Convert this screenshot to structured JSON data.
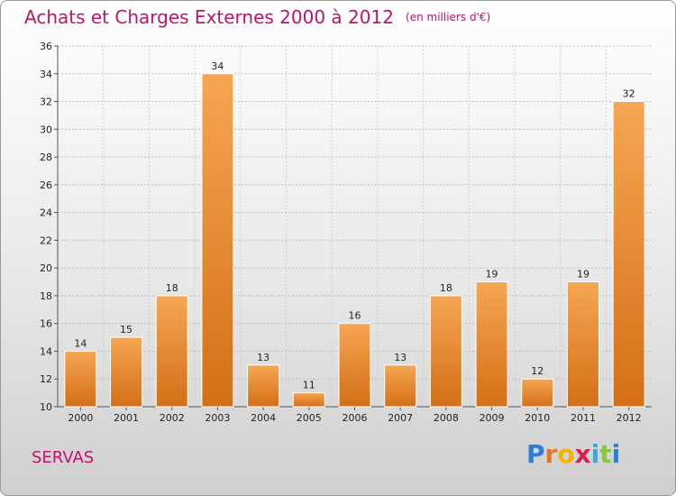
{
  "title": "Achats et Charges Externes 2000 à 2012",
  "unit": "(en milliers d'€)",
  "commune": "SERVAS",
  "logo": {
    "letters": [
      "P",
      "r",
      "o",
      "x",
      "i",
      "t",
      "i"
    ],
    "colors": [
      "#2b7fd4",
      "#e8732a",
      "#f2b400",
      "#d8224a",
      "#3aa7e0",
      "#8cc63f",
      "#2b7fd4"
    ]
  },
  "colors": {
    "accent": "#c0136b",
    "bar_light": "#f6a653",
    "bar_dark": "#d46f16"
  },
  "chart_data": {
    "type": "bar",
    "categories": [
      "2000",
      "2001",
      "2002",
      "2003",
      "2004",
      "2005",
      "2006",
      "2007",
      "2008",
      "2009",
      "2010",
      "2011",
      "2012"
    ],
    "values": [
      14,
      15,
      18,
      34,
      13,
      11,
      16,
      13,
      18,
      19,
      12,
      19,
      32
    ],
    "ylim": [
      10,
      36
    ],
    "yticks": [
      10,
      12,
      14,
      16,
      18,
      20,
      22,
      24,
      26,
      28,
      30,
      32,
      34,
      36
    ],
    "grid": true,
    "title": "Achats et Charges Externes 2000 à 2012",
    "xlabel": "",
    "ylabel": ""
  }
}
